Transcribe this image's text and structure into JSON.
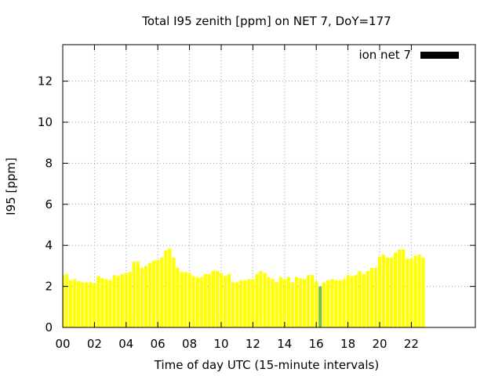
{
  "chart_data": {
    "type": "bar",
    "title": "Total I95 zenith [ppm] on NET 7, DoY=177",
    "xlabel": "Time of day UTC (15-minute intervals)",
    "ylabel": "I95 [ppm]",
    "xlim": [
      0,
      22.75
    ],
    "ylim": [
      0,
      13.8
    ],
    "xticks": [
      "00",
      "02",
      "04",
      "06",
      "08",
      "10",
      "12",
      "14",
      "16",
      "18",
      "20",
      "22"
    ],
    "yticks": [
      "0",
      "2",
      "4",
      "6",
      "8",
      "10",
      "12"
    ],
    "grid": true,
    "legend_position": "top-right",
    "series": [
      {
        "name": "ion net 7",
        "legend_color": "#000000",
        "bar_color": "#ffff00",
        "highlight_color": "#7fbf3f",
        "highlight_index": 65,
        "x": [
          0.0,
          0.25,
          0.5,
          0.75,
          1.0,
          1.25,
          1.5,
          1.75,
          2.0,
          2.25,
          2.5,
          2.75,
          3.0,
          3.25,
          3.5,
          3.75,
          4.0,
          4.25,
          4.5,
          4.75,
          5.0,
          5.25,
          5.5,
          5.75,
          6.0,
          6.25,
          6.5,
          6.75,
          7.0,
          7.25,
          7.5,
          7.75,
          8.0,
          8.25,
          8.5,
          8.75,
          9.0,
          9.25,
          9.5,
          9.75,
          10.0,
          10.25,
          10.5,
          10.75,
          11.0,
          11.25,
          11.5,
          11.75,
          12.0,
          12.25,
          12.5,
          12.75,
          13.0,
          13.25,
          13.5,
          13.75,
          14.0,
          14.25,
          14.5,
          14.75,
          15.0,
          15.25,
          15.5,
          15.75,
          16.0,
          16.25,
          16.5,
          16.75,
          17.0,
          17.25,
          17.5,
          17.75,
          18.0,
          18.25,
          18.5,
          18.75,
          19.0,
          19.25,
          19.5,
          19.75,
          20.0,
          20.25,
          20.5,
          20.75,
          21.0,
          21.25,
          21.5,
          21.75,
          22.0,
          22.25,
          22.5,
          22.75
        ],
        "values": [
          2.55,
          2.6,
          2.3,
          2.35,
          2.25,
          2.2,
          2.2,
          2.2,
          2.15,
          2.5,
          2.4,
          2.35,
          2.3,
          2.55,
          2.5,
          2.6,
          2.65,
          2.7,
          3.2,
          3.2,
          2.9,
          3.0,
          3.15,
          3.25,
          3.3,
          3.4,
          3.75,
          3.85,
          3.4,
          2.9,
          2.7,
          2.7,
          2.65,
          2.5,
          2.45,
          2.45,
          2.6,
          2.6,
          2.75,
          2.75,
          2.65,
          2.5,
          2.6,
          2.2,
          2.2,
          2.3,
          2.3,
          2.35,
          2.35,
          2.6,
          2.75,
          2.65,
          2.45,
          2.35,
          2.2,
          2.45,
          2.35,
          2.45,
          2.2,
          2.45,
          2.4,
          2.35,
          2.55,
          2.55,
          2.25,
          2.0,
          2.2,
          2.3,
          2.35,
          2.3,
          2.3,
          2.35,
          2.55,
          2.5,
          2.55,
          2.75,
          2.6,
          2.75,
          2.9,
          2.9,
          3.45,
          3.55,
          3.4,
          3.4,
          3.65,
          3.8,
          3.8,
          3.35,
          3.35,
          3.5,
          3.55,
          3.4
        ]
      }
    ]
  }
}
